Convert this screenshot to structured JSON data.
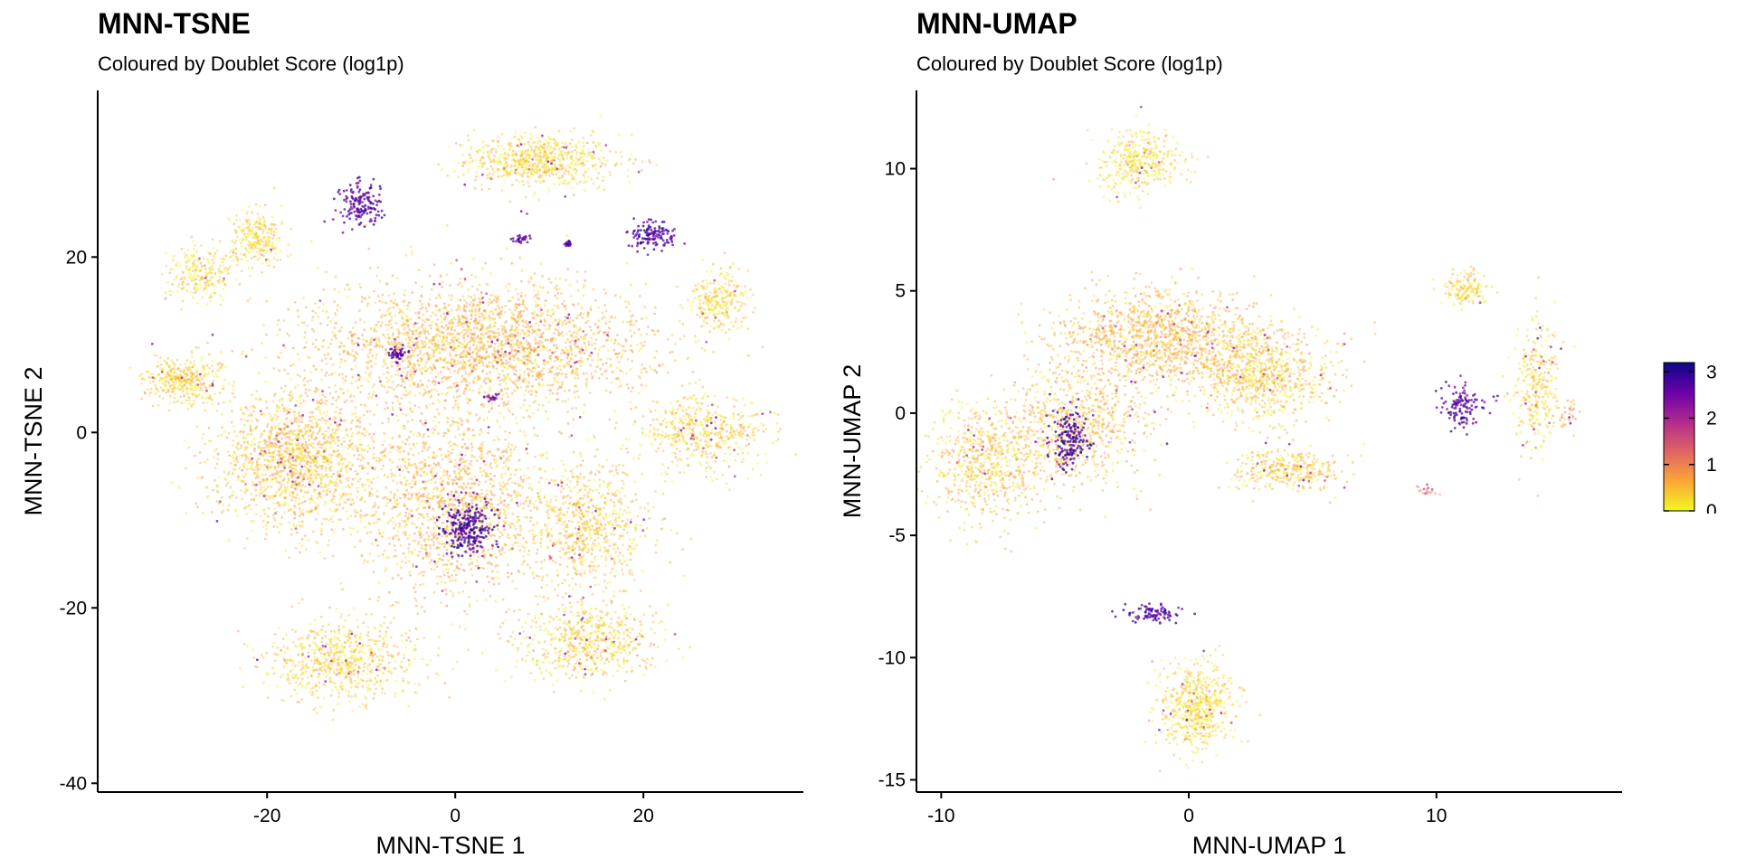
{
  "chart_data": [
    {
      "type": "scatter",
      "title": "MNN-TSNE",
      "subtitle": "Coloured by Doublet Score (log1p)",
      "xlabel": "MNN-TSNE 1",
      "ylabel": "MNN-TSNE 2",
      "xlim": [
        -38,
        37
      ],
      "ylim": [
        -41,
        39
      ],
      "xticks": [
        -20,
        0,
        20
      ],
      "yticks": [
        -40,
        -20,
        0,
        20
      ],
      "grid": false,
      "color_variable": "Doublet Score (log1p)",
      "clusters": [
        {
          "center": [
            9,
            31
          ],
          "spread": [
            6.5,
            2.5
          ],
          "n": 700,
          "score_mean": 0.3
        },
        {
          "center": [
            -21,
            22
          ],
          "spread": [
            2.5,
            2.5
          ],
          "n": 260,
          "score_mean": 0.3
        },
        {
          "center": [
            -27,
            18
          ],
          "spread": [
            3,
            2.5
          ],
          "n": 240,
          "score_mean": 0.3
        },
        {
          "center": [
            -29,
            6
          ],
          "spread": [
            3.5,
            2.2
          ],
          "n": 380,
          "score_mean": 0.35
        },
        {
          "center": [
            28,
            15
          ],
          "spread": [
            2.5,
            3
          ],
          "n": 260,
          "score_mean": 0.3
        },
        {
          "center": [
            26,
            0
          ],
          "spread": [
            6,
            3.5
          ],
          "n": 520,
          "score_mean": 0.35
        },
        {
          "center": [
            -10,
            26
          ],
          "spread": [
            1.8,
            2.2
          ],
          "n": 160,
          "score_mean": 2.7
        },
        {
          "center": [
            21,
            22.5
          ],
          "spread": [
            2.2,
            1.2
          ],
          "n": 130,
          "score_mean": 2.8
        },
        {
          "center": [
            7,
            22
          ],
          "spread": [
            0.8,
            0.4
          ],
          "n": 25,
          "score_mean": 2.7
        },
        {
          "center": [
            12,
            21.5
          ],
          "spread": [
            0.6,
            0.3
          ],
          "n": 18,
          "score_mean": 2.7
        },
        {
          "center": [
            3,
            10
          ],
          "spread": [
            15,
            6
          ],
          "n": 2400,
          "score_mean": 0.55
        },
        {
          "center": [
            -17,
            -3
          ],
          "spread": [
            7,
            7
          ],
          "n": 1500,
          "score_mean": 0.45
        },
        {
          "center": [
            0,
            -8
          ],
          "spread": [
            9,
            9
          ],
          "n": 1500,
          "score_mean": 0.55
        },
        {
          "center": [
            14,
            -11
          ],
          "spread": [
            5.5,
            6
          ],
          "n": 700,
          "score_mean": 0.4
        },
        {
          "center": [
            -12,
            -26
          ],
          "spread": [
            6.5,
            4
          ],
          "n": 700,
          "score_mean": 0.35
        },
        {
          "center": [
            14,
            -24
          ],
          "spread": [
            6,
            3.5
          ],
          "n": 600,
          "score_mean": 0.35
        },
        {
          "center": [
            -6,
            9
          ],
          "spread": [
            0.9,
            0.8
          ],
          "n": 50,
          "score_mean": 2.6
        },
        {
          "center": [
            1.5,
            -11
          ],
          "spread": [
            2.2,
            2.5
          ],
          "n": 260,
          "score_mean": 2.8
        },
        {
          "center": [
            4,
            4
          ],
          "spread": [
            0.6,
            0.4
          ],
          "n": 20,
          "score_mean": 2.3
        }
      ]
    },
    {
      "type": "scatter",
      "title": "MNN-UMAP",
      "subtitle": "Coloured by Doublet Score (log1p)",
      "xlabel": "MNN-UMAP 1",
      "ylabel": "MNN-UMAP 2",
      "xlim": [
        -11,
        17.5
      ],
      "ylim": [
        -15.5,
        13.2
      ],
      "xticks": [
        -10,
        0,
        10
      ],
      "yticks": [
        -15,
        -10,
        -5,
        0,
        5,
        10
      ],
      "grid": false,
      "color_variable": "Doublet Score (log1p)",
      "clusters": [
        {
          "center": [
            -2,
            10.3
          ],
          "spread": [
            1.4,
            1.1
          ],
          "n": 380,
          "score_mean": 0.25
        },
        {
          "center": [
            -1.2,
            3
          ],
          "spread": [
            3.5,
            1.6
          ],
          "n": 1300,
          "score_mean": 0.55
        },
        {
          "center": [
            3,
            1.5
          ],
          "spread": [
            2.3,
            1.6
          ],
          "n": 800,
          "score_mean": 0.4
        },
        {
          "center": [
            -8,
            -2
          ],
          "spread": [
            2,
            2
          ],
          "n": 700,
          "score_mean": 0.45
        },
        {
          "center": [
            -4.5,
            -0.5
          ],
          "spread": [
            2.2,
            2
          ],
          "n": 700,
          "score_mean": 0.5
        },
        {
          "center": [
            4,
            -2.3
          ],
          "spread": [
            1.8,
            0.7
          ],
          "n": 350,
          "score_mean": 0.4
        },
        {
          "center": [
            -4.8,
            -1
          ],
          "spread": [
            0.7,
            1
          ],
          "n": 170,
          "score_mean": 2.8
        },
        {
          "center": [
            11.2,
            5.1
          ],
          "spread": [
            0.8,
            0.6
          ],
          "n": 150,
          "score_mean": 0.3
        },
        {
          "center": [
            14,
            1.2
          ],
          "spread": [
            0.8,
            2.2
          ],
          "n": 320,
          "score_mean": 0.3
        },
        {
          "center": [
            11,
            0.3
          ],
          "spread": [
            0.7,
            0.8
          ],
          "n": 120,
          "score_mean": 2.7
        },
        {
          "center": [
            15.3,
            0
          ],
          "spread": [
            0.4,
            0.5
          ],
          "n": 30,
          "score_mean": 0.8
        },
        {
          "center": [
            9.6,
            -3.2
          ],
          "spread": [
            0.4,
            0.2
          ],
          "n": 20,
          "score_mean": 1.2
        },
        {
          "center": [
            -1.5,
            -8.2
          ],
          "spread": [
            0.9,
            0.3
          ],
          "n": 90,
          "score_mean": 2.7
        },
        {
          "center": [
            0.3,
            -12
          ],
          "spread": [
            1.3,
            1.5
          ],
          "n": 600,
          "score_mean": 0.25
        }
      ]
    }
  ],
  "legend": {
    "title": "",
    "ticks": [
      0,
      1,
      2,
      3
    ],
    "range": [
      0,
      3.2
    ],
    "colors": [
      "#f0f921",
      "#fca636",
      "#e16462",
      "#b12a90",
      "#6a00a8",
      "#0d0887"
    ]
  }
}
